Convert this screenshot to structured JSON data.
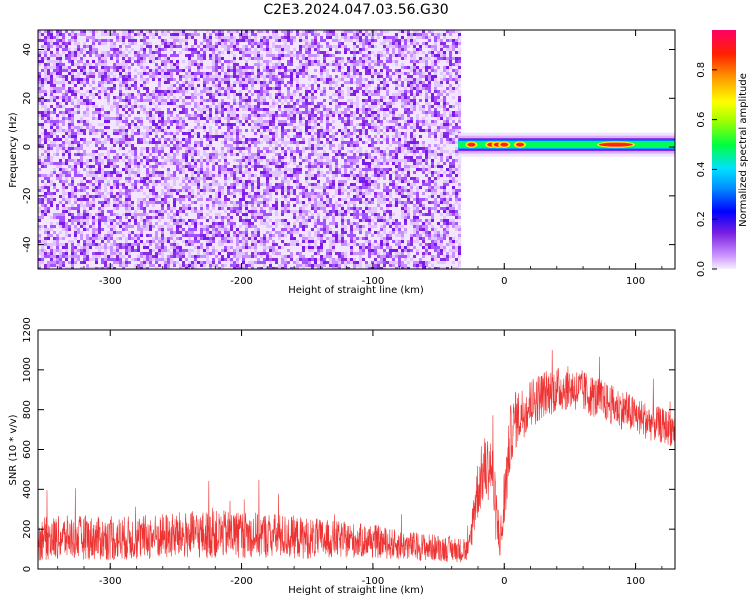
{
  "figure": {
    "title": "C2E3.2024.047.03.56.G30"
  },
  "colors": {
    "frame": "#000000",
    "snr_line": "#ee3333",
    "colormap": [
      "#f4e8ff",
      "#d9a8ff",
      "#8a2be2",
      "#0000ff",
      "#00d5ff",
      "#00ff40",
      "#ffff00",
      "#ff8c00",
      "#ff0000",
      "#ff0066"
    ]
  },
  "chart_data": [
    {
      "type": "heatmap",
      "xlabel": "Height of straight line (km)",
      "ylabel": "Frequency (Hz)",
      "xlim": [
        -355,
        130
      ],
      "ylim": [
        -50,
        48
      ],
      "xticks": [
        -300,
        -200,
        -100,
        0,
        100
      ],
      "yticks": [
        -40,
        -20,
        0,
        20,
        40
      ],
      "noise_region_x": [
        -355,
        -35
      ],
      "signal_band": {
        "x_start": -35,
        "x_end": 130,
        "center_frequency": 1,
        "core_peaks_x": [
          -25,
          -10,
          -5,
          0,
          12,
          85
        ],
        "core_peak_amplitude": 0.95
      },
      "colorbar": {
        "label": "Normalized spectral amplitude",
        "range": [
          0,
          0.96
        ],
        "ticks": [
          "0.0",
          "0.2",
          "0.4",
          "0.6",
          "0.8"
        ]
      }
    },
    {
      "type": "line",
      "xlabel": "Height of straight line (km)",
      "ylabel": "SNR (10 * v/v)",
      "xlim": [
        -355,
        130
      ],
      "ylim": [
        0,
        1200
      ],
      "xticks": [
        -300,
        -200,
        -100,
        0,
        100
      ],
      "yticks": [
        0,
        200,
        400,
        600,
        800,
        1000,
        1200
      ],
      "series": [
        {
          "x": [
            -355,
            -330,
            -300,
            -270,
            -240,
            -210,
            -180,
            -150,
            -120,
            -100,
            -80,
            -60,
            -40,
            -27,
            -22,
            -18,
            -15,
            -10,
            -5,
            -2,
            0,
            5,
            10,
            20,
            30,
            40,
            50,
            60,
            70,
            80,
            90,
            100,
            110,
            120,
            130
          ],
          "y": [
            150,
            160,
            150,
            160,
            170,
            175,
            170,
            155,
            145,
            140,
            120,
            110,
            100,
            90,
            350,
            450,
            500,
            520,
            200,
            160,
            350,
            680,
            760,
            830,
            880,
            900,
            910,
            890,
            860,
            830,
            800,
            770,
            740,
            720,
            700
          ],
          "noise_amplitude": [
            110,
            110,
            110,
            115,
            120,
            120,
            115,
            105,
            90,
            85,
            75,
            70,
            65,
            60,
            150,
            160,
            170,
            170,
            150,
            120,
            180,
            150,
            140,
            130,
            120,
            115,
            110,
            110,
            105,
            100,
            100,
            95,
            95,
            90,
            90
          ]
        }
      ]
    }
  ]
}
